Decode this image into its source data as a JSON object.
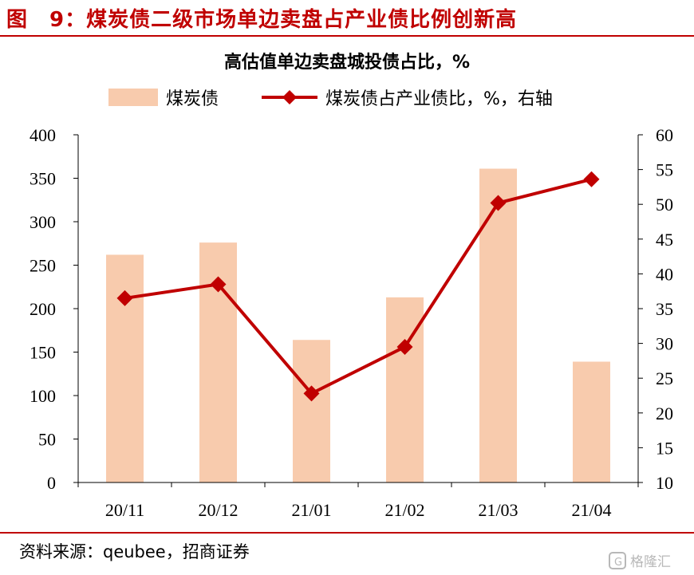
{
  "figure_title": "图　9：煤炭债二级市场单边卖盘占产业债比例创新高",
  "source_text": "资料来源：qeubee，招商证券",
  "watermark_text": "格隆汇",
  "colors": {
    "accent": "#c00000",
    "bar": "#f8cbad",
    "line": "#c00000"
  },
  "chart_data": {
    "type": "bar",
    "title": "高估值单边卖盘城投债占比，%",
    "categories": [
      "20/11",
      "20/12",
      "21/01",
      "21/02",
      "21/03",
      "21/04"
    ],
    "series": [
      {
        "name": "煤炭债",
        "type": "bar",
        "axis": "left",
        "values": [
          262,
          276,
          164,
          213,
          361,
          139
        ]
      },
      {
        "name": "煤炭债占产业债比，%，右轴",
        "type": "line",
        "axis": "right",
        "values": [
          36.5,
          38.5,
          22.8,
          29.5,
          50.2,
          53.6
        ]
      }
    ],
    "y_left": {
      "min": 0,
      "max": 400,
      "step": 50
    },
    "y_right": {
      "min": 10,
      "max": 60,
      "step": 5
    },
    "legend_position": "top",
    "grid": false
  }
}
